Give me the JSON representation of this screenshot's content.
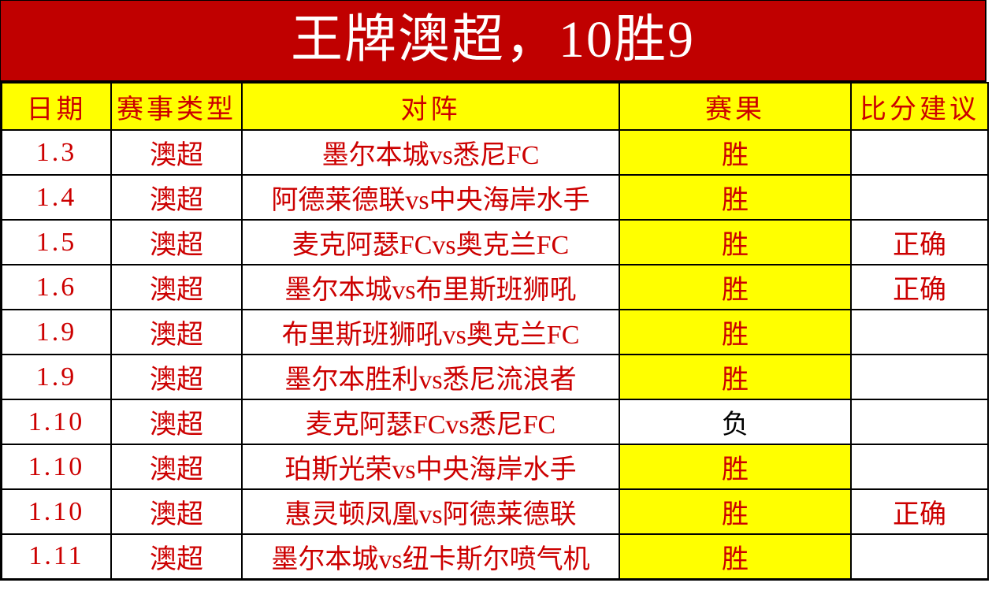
{
  "title": "王牌澳超，10胜9",
  "table": {
    "columns": [
      {
        "key": "date",
        "label": "日期"
      },
      {
        "key": "type",
        "label": "赛事类型"
      },
      {
        "key": "match",
        "label": "对阵"
      },
      {
        "key": "result",
        "label": "赛果"
      },
      {
        "key": "advice",
        "label": "比分建议"
      }
    ],
    "rows": [
      {
        "date": "1.3",
        "type": "澳超",
        "match": "墨尔本城vs悉尼FC",
        "result": "胜",
        "result_highlight": true,
        "advice": ""
      },
      {
        "date": "1.4",
        "type": "澳超",
        "match": "阿德莱德联vs中央海岸水手",
        "result": "胜",
        "result_highlight": true,
        "advice": ""
      },
      {
        "date": "1.5",
        "type": "澳超",
        "match": "麦克阿瑟FCvs奥克兰FC",
        "result": "胜",
        "result_highlight": true,
        "advice": "正确"
      },
      {
        "date": "1.6",
        "type": "澳超",
        "match": "墨尔本城vs布里斯班狮吼",
        "result": "胜",
        "result_highlight": true,
        "advice": "正确"
      },
      {
        "date": "1.9",
        "type": "澳超",
        "match": "布里斯班狮吼vs奥克兰FC",
        "result": "胜",
        "result_highlight": true,
        "advice": ""
      },
      {
        "date": "1.9",
        "type": "澳超",
        "match": "墨尔本胜利vs悉尼流浪者",
        "result": "胜",
        "result_highlight": true,
        "advice": ""
      },
      {
        "date": "1.10",
        "type": "澳超",
        "match": "麦克阿瑟FCvs悉尼FC",
        "result": "负",
        "result_highlight": false,
        "advice": ""
      },
      {
        "date": "1.10",
        "type": "澳超",
        "match": "珀斯光荣vs中央海岸水手",
        "result": "胜",
        "result_highlight": true,
        "advice": ""
      },
      {
        "date": "1.10",
        "type": "澳超",
        "match": "惠灵顿凤凰vs阿德莱德联",
        "result": "胜",
        "result_highlight": true,
        "advice": "正确"
      },
      {
        "date": "1.11",
        "type": "澳超",
        "match": "墨尔本城vs纽卡斯尔喷气机",
        "result": "胜",
        "result_highlight": true,
        "advice": ""
      }
    ]
  },
  "colors": {
    "banner_bg": "#C00000",
    "text_red": "#CC0000",
    "highlight_yellow": "#FFFF00",
    "loss_text": "#000000",
    "border_color": "#000000",
    "cell_bg": "#FFFFFF"
  }
}
